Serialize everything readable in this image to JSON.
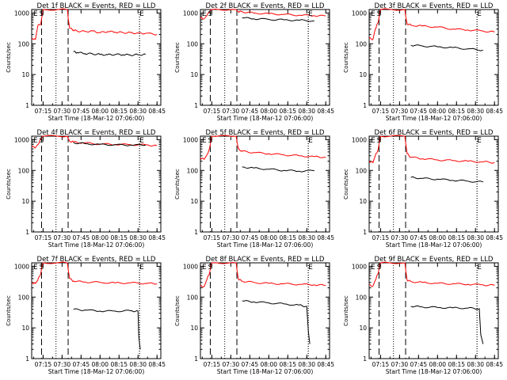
{
  "chart_data": [
    {
      "type": "line",
      "title": "Det 1f BLACK = Events, RED = LLD",
      "xlabel": "Start Time (18-Mar-12 07:06:00)",
      "ylabel": "Counts/sec",
      "yscale": "log",
      "ylim": [
        1,
        1300
      ],
      "xlim": [
        7.1,
        8.8
      ],
      "x_tick_labels": [
        "07:15",
        "07:30",
        "07:45",
        "08:00",
        "08:15",
        "08:30",
        "08:45"
      ],
      "y_tick_labels": [
        "1",
        "10",
        "100",
        "1000"
      ],
      "markers": [
        {
          "label": "E",
          "x": 7.15
        },
        {
          "label": "S",
          "x": 7.23
        },
        {
          "label": "E",
          "x": 8.55
        }
      ],
      "series": [
        {
          "name": "RED = LLD",
          "color": "#ff0000",
          "x": [
            7.1,
            7.15,
            7.18,
            7.22,
            7.24,
            7.25,
            7.57,
            7.58,
            7.6,
            7.65,
            7.7,
            7.8,
            7.9,
            8.0,
            8.1,
            8.2,
            8.3,
            8.4,
            8.5,
            8.6,
            8.75
          ],
          "values": [
            150,
            140,
            380,
            450,
            900,
            1300,
            1300,
            700,
            320,
            280,
            260,
            250,
            260,
            230,
            250,
            240,
            230,
            230,
            220,
            220,
            200
          ]
        },
        {
          "name": "BLACK = Events",
          "color": "#000000",
          "x": [
            7.65,
            7.7,
            7.8,
            7.9,
            8.0,
            8.1,
            8.2,
            8.3,
            8.4,
            8.5,
            8.6
          ],
          "values": [
            55,
            52,
            48,
            47,
            45,
            44,
            45,
            44,
            43,
            44,
            45
          ]
        }
      ]
    },
    {
      "type": "line",
      "title": "Det 2f BLACK = Events, RED = LLD",
      "xlabel": "Start Time (18-Mar-12 07:06:00)",
      "ylabel": "Counts/sec",
      "yscale": "log",
      "ylim": [
        1,
        1300
      ],
      "xlim": [
        7.1,
        8.8
      ],
      "x_tick_labels": [
        "07:15",
        "07:30",
        "07:45",
        "08:00",
        "08:15",
        "08:30",
        "08:45"
      ],
      "y_tick_labels": [
        "1",
        "10",
        "100",
        "1000"
      ],
      "markers": [
        {
          "label": "E",
          "x": 7.15
        },
        {
          "label": "S",
          "x": 7.23
        },
        {
          "label": "E",
          "x": 8.55
        }
      ],
      "series": [
        {
          "name": "RED = LLD",
          "color": "#ff0000",
          "x": [
            7.1,
            7.15,
            7.18,
            7.22,
            7.24,
            7.25,
            7.57,
            7.58,
            7.6,
            7.65,
            7.8,
            8.0,
            8.2,
            8.4,
            8.6,
            8.75
          ],
          "values": [
            700,
            650,
            800,
            1100,
            1300,
            1300,
            1300,
            1200,
            1100,
            1100,
            1000,
            950,
            900,
            850,
            820,
            800
          ]
        },
        {
          "name": "BLACK = Events",
          "color": "#000000",
          "x": [
            7.65,
            7.8,
            8.0,
            8.2,
            8.4,
            8.6
          ],
          "values": [
            700,
            650,
            620,
            600,
            580,
            560
          ]
        }
      ]
    },
    {
      "type": "line",
      "title": "Det 3f BLACK = Events, RED = LLD",
      "xlabel": "Start Time (18-Mar-12 07:06:00)",
      "ylabel": "Counts/sec",
      "yscale": "log",
      "ylim": [
        1,
        1300
      ],
      "xlim": [
        7.1,
        8.8
      ],
      "x_tick_labels": [
        "07:15",
        "07:30",
        "07:45",
        "08:00",
        "08:15",
        "08:30",
        "08:45"
      ],
      "y_tick_labels": [
        "1",
        "10",
        "100",
        "1000"
      ],
      "markers": [
        {
          "label": "E",
          "x": 7.15
        },
        {
          "label": "S",
          "x": 7.23
        },
        {
          "label": "E",
          "x": 8.55
        }
      ],
      "series": [
        {
          "name": "RED = LLD",
          "color": "#ff0000",
          "x": [
            7.1,
            7.15,
            7.18,
            7.22,
            7.24,
            7.25,
            7.57,
            7.58,
            7.6,
            7.65,
            7.8,
            8.0,
            8.2,
            8.4,
            8.6,
            8.75
          ],
          "values": [
            150,
            140,
            300,
            500,
            1000,
            1300,
            1300,
            800,
            450,
            400,
            380,
            350,
            300,
            280,
            260,
            240
          ]
        },
        {
          "name": "BLACK = Events",
          "color": "#000000",
          "x": [
            7.65,
            7.8,
            8.0,
            8.2,
            8.4,
            8.6
          ],
          "values": [
            90,
            85,
            80,
            75,
            68,
            62
          ]
        }
      ]
    },
    {
      "type": "line",
      "title": "Det 4f BLACK = Events, RED = LLD",
      "xlabel": "Start Time (18-Mar-12 07:06:00)",
      "ylabel": "Counts/sec",
      "yscale": "log",
      "ylim": [
        1,
        1300
      ],
      "xlim": [
        7.1,
        8.8
      ],
      "x_tick_labels": [
        "07:15",
        "07:30",
        "07:45",
        "08:00",
        "08:15",
        "08:30",
        "08:45"
      ],
      "y_tick_labels": [
        "1",
        "10",
        "100",
        "1000"
      ],
      "markers": [
        {
          "label": "E",
          "x": 7.15
        },
        {
          "label": "S",
          "x": 7.23
        },
        {
          "label": "E",
          "x": 8.55
        }
      ],
      "series": [
        {
          "name": "RED = LLD",
          "color": "#ff0000",
          "x": [
            7.1,
            7.15,
            7.18,
            7.22,
            7.24,
            7.25,
            7.57,
            7.58,
            7.6,
            7.65,
            7.8,
            8.0,
            8.2,
            8.4,
            8.6,
            8.75
          ],
          "values": [
            600,
            550,
            700,
            1000,
            1300,
            1300,
            1300,
            1100,
            900,
            850,
            780,
            720,
            700,
            690,
            680,
            640
          ]
        },
        {
          "name": "BLACK = Events",
          "color": "#000000",
          "x": [
            7.65,
            7.8,
            8.0,
            8.2,
            8.4,
            8.6
          ],
          "values": [
            800,
            740,
            700,
            680,
            670,
            660
          ]
        }
      ]
    },
    {
      "type": "line",
      "title": "Det 5f BLACK = Events, RED = LLD",
      "xlabel": "Start Time (18-Mar-12 07:06:00)",
      "ylabel": "Counts/sec",
      "yscale": "log",
      "ylim": [
        1,
        1300
      ],
      "xlim": [
        7.1,
        8.8
      ],
      "x_tick_labels": [
        "07:15",
        "07:30",
        "07:45",
        "08:00",
        "08:15",
        "08:30",
        "08:45"
      ],
      "y_tick_labels": [
        "1",
        "10",
        "100",
        "1000"
      ],
      "markers": [
        {
          "label": "E",
          "x": 7.15
        },
        {
          "label": "S",
          "x": 7.23
        },
        {
          "label": "E",
          "x": 8.55
        }
      ],
      "series": [
        {
          "name": "RED = LLD",
          "color": "#ff0000",
          "x": [
            7.1,
            7.15,
            7.18,
            7.22,
            7.24,
            7.25,
            7.57,
            7.58,
            7.6,
            7.65,
            7.8,
            8.0,
            8.2,
            8.4,
            8.6,
            8.75
          ],
          "values": [
            250,
            230,
            300,
            500,
            1000,
            1300,
            1300,
            900,
            500,
            420,
            380,
            350,
            320,
            300,
            280,
            270
          ]
        },
        {
          "name": "BLACK = Events",
          "color": "#000000",
          "x": [
            7.65,
            7.8,
            8.0,
            8.2,
            8.4,
            8.6
          ],
          "values": [
            130,
            120,
            110,
            100,
            95,
            98
          ]
        }
      ]
    },
    {
      "type": "line",
      "title": "Det 6f BLACK = Events, RED = LLD",
      "xlabel": "Start Time (18-Mar-12 07:06:00)",
      "ylabel": "Counts/sec",
      "yscale": "log",
      "ylim": [
        1,
        1300
      ],
      "xlim": [
        7.1,
        8.8
      ],
      "x_tick_labels": [
        "07:15",
        "07:30",
        "07:45",
        "08:00",
        "08:15",
        "08:30",
        "08:45"
      ],
      "y_tick_labels": [
        "1",
        "10",
        "100",
        "1000"
      ],
      "markers": [
        {
          "label": "E",
          "x": 7.15
        },
        {
          "label": "S",
          "x": 7.23
        },
        {
          "label": "E",
          "x": 8.55
        }
      ],
      "series": [
        {
          "name": "RED = LLD",
          "color": "#ff0000",
          "x": [
            7.1,
            7.15,
            7.18,
            7.22,
            7.24,
            7.25,
            7.57,
            7.58,
            7.6,
            7.65,
            7.8,
            8.0,
            8.2,
            8.4,
            8.6,
            8.75
          ],
          "values": [
            200,
            180,
            300,
            500,
            1000,
            1300,
            1300,
            800,
            350,
            270,
            240,
            220,
            210,
            200,
            190,
            180
          ]
        },
        {
          "name": "BLACK = Events",
          "color": "#000000",
          "x": [
            7.65,
            7.8,
            8.0,
            8.2,
            8.4,
            8.6
          ],
          "values": [
            60,
            55,
            52,
            48,
            45,
            42
          ]
        }
      ]
    },
    {
      "type": "line",
      "title": "Det 7f BLACK = Events, RED = LLD",
      "xlabel": "Start Time (18-Mar-12 07:06:00)",
      "ylabel": "Counts/sec",
      "yscale": "log",
      "ylim": [
        1,
        1300
      ],
      "xlim": [
        7.1,
        8.8
      ],
      "x_tick_labels": [
        "07:15",
        "07:30",
        "07:45",
        "08:00",
        "08:15",
        "08:30",
        "08:45"
      ],
      "y_tick_labels": [
        "1",
        "10",
        "100",
        "1000"
      ],
      "markers": [
        {
          "label": "E",
          "x": 7.15
        },
        {
          "label": "S",
          "x": 7.23
        },
        {
          "label": "E",
          "x": 8.55
        }
      ],
      "series": [
        {
          "name": "RED = LLD",
          "color": "#ff0000",
          "x": [
            7.1,
            7.15,
            7.18,
            7.22,
            7.24,
            7.25,
            7.57,
            7.58,
            7.6,
            7.65,
            7.8,
            8.0,
            8.2,
            8.4,
            8.6,
            8.75
          ],
          "values": [
            300,
            280,
            350,
            600,
            1100,
            1300,
            1300,
            800,
            400,
            330,
            310,
            300,
            290,
            290,
            280,
            270
          ]
        },
        {
          "name": "BLACK = Events",
          "color": "#000000",
          "x": [
            7.65,
            7.8,
            8.0,
            8.2,
            8.4,
            8.5,
            8.51,
            8.53
          ],
          "values": [
            40,
            38,
            35,
            35,
            36,
            35,
            5,
            2
          ]
        }
      ]
    },
    {
      "type": "line",
      "title": "Det 8f BLACK = Events, RED = LLD",
      "xlabel": "Start Time (18-Mar-12 07:06:00)",
      "ylabel": "Counts/sec",
      "yscale": "log",
      "ylim": [
        1,
        1300
      ],
      "xlim": [
        7.1,
        8.8
      ],
      "x_tick_labels": [
        "07:15",
        "07:30",
        "07:45",
        "08:00",
        "08:15",
        "08:30",
        "08:45"
      ],
      "y_tick_labels": [
        "1",
        "10",
        "100",
        "1000"
      ],
      "markers": [
        {
          "label": "E",
          "x": 7.15
        },
        {
          "label": "S",
          "x": 7.23
        },
        {
          "label": "E",
          "x": 8.55
        }
      ],
      "series": [
        {
          "name": "RED = LLD",
          "color": "#ff0000",
          "x": [
            7.1,
            7.15,
            7.18,
            7.22,
            7.24,
            7.25,
            7.57,
            7.58,
            7.6,
            7.65,
            7.8,
            8.0,
            8.2,
            8.4,
            8.6,
            8.75
          ],
          "values": [
            230,
            220,
            350,
            600,
            1100,
            1300,
            1300,
            800,
            380,
            330,
            300,
            280,
            270,
            260,
            250,
            240
          ]
        },
        {
          "name": "BLACK = Events",
          "color": "#000000",
          "x": [
            7.65,
            7.8,
            8.0,
            8.2,
            8.4,
            8.5,
            8.52,
            8.54
          ],
          "values": [
            75,
            70,
            65,
            60,
            55,
            50,
            8,
            3
          ]
        }
      ]
    },
    {
      "type": "line",
      "title": "Det 9f BLACK = Events, RED = LLD",
      "xlabel": "Start Time (18-Mar-12 07:06:00)",
      "ylabel": "Counts/sec",
      "yscale": "log",
      "ylim": [
        1,
        1300
      ],
      "xlim": [
        7.1,
        8.8
      ],
      "x_tick_labels": [
        "07:15",
        "07:30",
        "07:45",
        "08:00",
        "08:15",
        "08:30",
        "08:45"
      ],
      "y_tick_labels": [
        "1",
        "10",
        "100",
        "1000"
      ],
      "markers": [
        {
          "label": "E",
          "x": 7.15
        },
        {
          "label": "S",
          "x": 7.23
        },
        {
          "label": "E",
          "x": 8.55
        }
      ],
      "series": [
        {
          "name": "RED = LLD",
          "color": "#ff0000",
          "x": [
            7.1,
            7.15,
            7.18,
            7.22,
            7.24,
            7.25,
            7.57,
            7.58,
            7.6,
            7.65,
            7.8,
            8.0,
            8.2,
            8.4,
            8.6,
            8.75
          ],
          "values": [
            240,
            230,
            350,
            600,
            1100,
            1300,
            1300,
            800,
            360,
            320,
            300,
            280,
            270,
            260,
            250,
            240
          ]
        },
        {
          "name": "BLACK = Events",
          "color": "#000000",
          "x": [
            7.65,
            7.8,
            8.0,
            8.2,
            8.4,
            8.55,
            8.57,
            8.6
          ],
          "values": [
            50,
            48,
            46,
            45,
            44,
            42,
            6,
            3
          ]
        }
      ]
    }
  ]
}
